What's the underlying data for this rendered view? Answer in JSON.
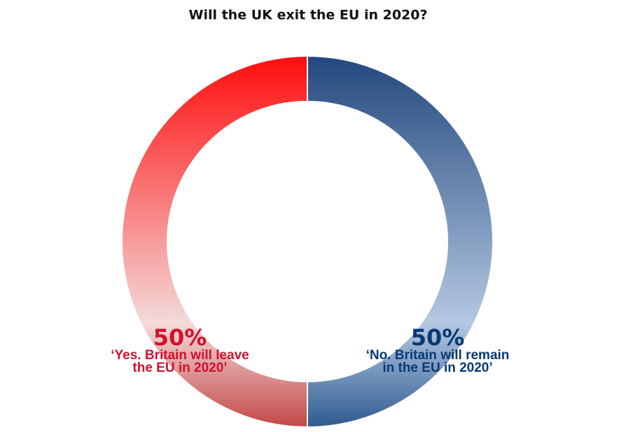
{
  "chart_data": {
    "type": "pie",
    "donut": true,
    "title": "Will the UK exit the EU in 2020?",
    "categories": [
      "‘Yes. Britain will leave\nthe EU in 2020’",
      "‘No. Britain will remain\nin the EU in 2020’"
    ],
    "values": [
      50,
      50
    ],
    "value_labels": [
      "50%",
      "50%"
    ],
    "colors": [
      "#ff0d0d",
      "#23487d"
    ],
    "label_colors": [
      "#d3102c",
      "#073a73"
    ]
  }
}
